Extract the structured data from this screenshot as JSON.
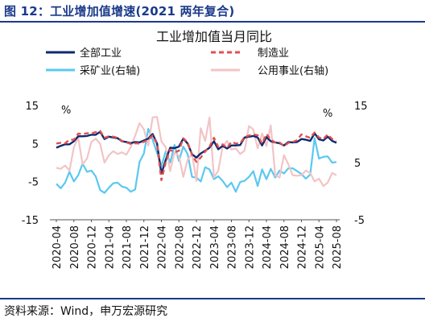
{
  "figure": {
    "title": "图 12：工业增加值增速(2021 两年复合)",
    "source": "资料来源：Wind，申万宏源研究"
  },
  "chart_data": {
    "type": "line",
    "title": "工业增加值当月同比",
    "y_left": {
      "unit": "%",
      "lim": [
        -15,
        15
      ],
      "ticks": [
        15,
        5,
        -5,
        -15
      ]
    },
    "y_right": {
      "unit": "%",
      "lim": [
        -5,
        15
      ],
      "ticks": [
        15,
        5,
        -5
      ]
    },
    "x_tick_labels": [
      "2020-04",
      "2020-08",
      "2020-12",
      "2021-04",
      "2021-08",
      "2021-12",
      "2022-04",
      "2022-08",
      "2022-12",
      "2023-04",
      "2023-08",
      "2023-12",
      "2024-04",
      "2024-08",
      "2024-12",
      "2025-04",
      "2025-08"
    ],
    "x_dates": [
      "2020-04",
      "2020-05",
      "2020-06",
      "2020-07",
      "2020-08",
      "2020-09",
      "2020-10",
      "2020-11",
      "2020-12",
      "2021-01",
      "2021-02",
      "2021-03",
      "2021-04",
      "2021-05",
      "2021-06",
      "2021-07",
      "2021-08",
      "2021-09",
      "2021-10",
      "2021-11",
      "2021-12",
      "2022-01",
      "2022-02",
      "2022-03",
      "2022-04",
      "2022-05",
      "2022-06",
      "2022-07",
      "2022-08",
      "2022-09",
      "2022-10",
      "2022-11",
      "2022-12",
      "2023-01",
      "2023-02",
      "2023-03",
      "2023-04",
      "2023-05",
      "2023-06",
      "2023-07",
      "2023-08",
      "2023-09",
      "2023-10",
      "2023-11",
      "2023-12",
      "2024-01",
      "2024-02",
      "2024-03",
      "2024-04",
      "2024-05",
      "2024-06",
      "2024-07",
      "2024-08",
      "2024-09",
      "2024-10",
      "2024-11",
      "2024-12",
      "2025-01",
      "2025-02",
      "2025-03",
      "2025-04",
      "2025-05",
      "2025-06",
      "2025-07",
      "2025-08"
    ],
    "grid": false,
    "legend": "top",
    "series": [
      {
        "name": "全部工业",
        "axis": "left",
        "color": "#0d2a6e",
        "style": "solid",
        "values": [
          3.9,
          4.4,
          4.8,
          4.8,
          5.6,
          6.9,
          6.9,
          7.0,
          7.3,
          7.3,
          8.1,
          6.2,
          6.8,
          6.6,
          6.4,
          5.6,
          5.4,
          5.1,
          5.4,
          5.3,
          5.8,
          6.3,
          7.5,
          5.0,
          -2.9,
          0.7,
          3.9,
          3.8,
          4.2,
          6.3,
          5.0,
          2.2,
          1.3,
          2.4,
          3.1,
          3.9,
          5.6,
          3.5,
          4.4,
          3.7,
          4.5,
          4.5,
          4.6,
          6.6,
          6.8,
          7.0,
          6.6,
          4.5,
          6.7,
          5.6,
          5.3,
          5.1,
          4.5,
          5.4,
          5.3,
          5.4,
          6.2,
          6.0,
          5.7,
          7.7,
          6.1,
          5.8,
          6.8,
          5.7,
          5.2
        ]
      },
      {
        "name": "制造业",
        "axis": "left",
        "color": "#e05050",
        "style": "dashed",
        "values": [
          5.0,
          5.2,
          5.1,
          6.0,
          6.0,
          7.6,
          7.5,
          7.7,
          7.7,
          8.0,
          8.3,
          6.5,
          6.9,
          6.8,
          6.5,
          5.7,
          5.3,
          4.9,
          5.1,
          5.0,
          5.5,
          6.0,
          7.1,
          4.9,
          -4.6,
          0.1,
          3.4,
          2.7,
          3.1,
          6.4,
          5.3,
          2.0,
          0.2,
          1.3,
          2.9,
          4.2,
          6.5,
          4.1,
          4.8,
          3.9,
          5.4,
          5.0,
          5.1,
          6.7,
          7.1,
          7.4,
          7.2,
          5.0,
          7.5,
          6.0,
          5.3,
          5.3,
          4.3,
          5.2,
          5.4,
          5.9,
          7.4,
          6.9,
          6.5,
          7.9,
          6.6,
          6.2,
          7.4,
          6.2,
          5.7
        ]
      },
      {
        "name": "采矿业(右轴)",
        "axis": "right",
        "color": "#5bc8f0",
        "style": "solid",
        "values": [
          1.3,
          0.5,
          1.5,
          3.4,
          1.7,
          2.8,
          4.8,
          3.4,
          3.6,
          2.6,
          0.2,
          -0.3,
          0.6,
          1.4,
          1.5,
          0.8,
          0.6,
          -0.1,
          0.3,
          5.1,
          6.6,
          10.9,
          9.0,
          6.7,
          4.4,
          7.0,
          5.0,
          8.1,
          5.3,
          7.8,
          6.5,
          2.5,
          2.4,
          1.7,
          4.2,
          3.8,
          2.1,
          2.6,
          1.8,
          0.7,
          1.5,
          -0.1,
          1.6,
          1.8,
          2.5,
          3.5,
          0.9,
          3.8,
          2.1,
          3.9,
          2.4,
          3.6,
          3.1,
          4.0,
          4.0,
          3.5,
          3.0,
          2.2,
          2.9,
          9.3,
          5.7,
          6.0,
          6.1,
          5.0,
          5.1
        ]
      },
      {
        "name": "公用事业(右轴)",
        "axis": "right",
        "color": "#f2c4c6",
        "style": "solid",
        "values": [
          4.1,
          3.9,
          4.5,
          3.6,
          7.7,
          9.4,
          4.7,
          5.7,
          8.6,
          9.2,
          8.3,
          5.0,
          6.3,
          7.0,
          6.5,
          6.8,
          6.4,
          7.7,
          9.7,
          11.9,
          10.8,
          8.0,
          12.9,
          13.0,
          8.7,
          7.7,
          3.5,
          6.8,
          6.2,
          2.5,
          5.5,
          6.5,
          1.8,
          11.0,
          8.8,
          12.9,
          2.4,
          3.6,
          7.8,
          8.8,
          7.3,
          7.5,
          6.5,
          7.1,
          11.4,
          10.8,
          7.5,
          10.1,
          7.9,
          11.5,
          2.8,
          2.4,
          6.3,
          4.7,
          2.8,
          2.7,
          2.8,
          3.6,
          3.2,
          1.7,
          2.2,
          0.9,
          1.5,
          3.2,
          2.8
        ]
      }
    ]
  }
}
